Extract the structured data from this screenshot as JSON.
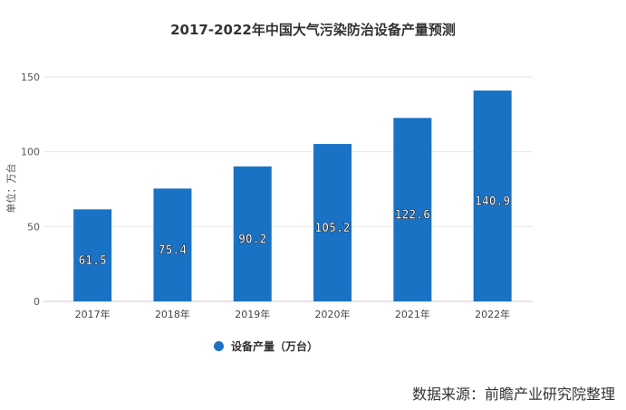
{
  "chart_data": {
    "type": "bar",
    "title": "2017-2022年中国大气污染防治设备产量预测",
    "ylabel": "单位：万台",
    "xlabel": "",
    "categories": [
      "2017年",
      "2018年",
      "2019年",
      "2020年",
      "2021年",
      "2022年"
    ],
    "series": [
      {
        "name": "设备产量（万台）",
        "values": [
          61.5,
          75.4,
          90.2,
          105.2,
          122.6,
          140.9
        ]
      }
    ],
    "ylim": [
      0,
      150
    ],
    "yticks": [
      0,
      50,
      100,
      150
    ],
    "grid": true,
    "legend": "bottom",
    "color": "#1a72c4"
  },
  "source": "数据来源：前瞻产业研究院整理"
}
